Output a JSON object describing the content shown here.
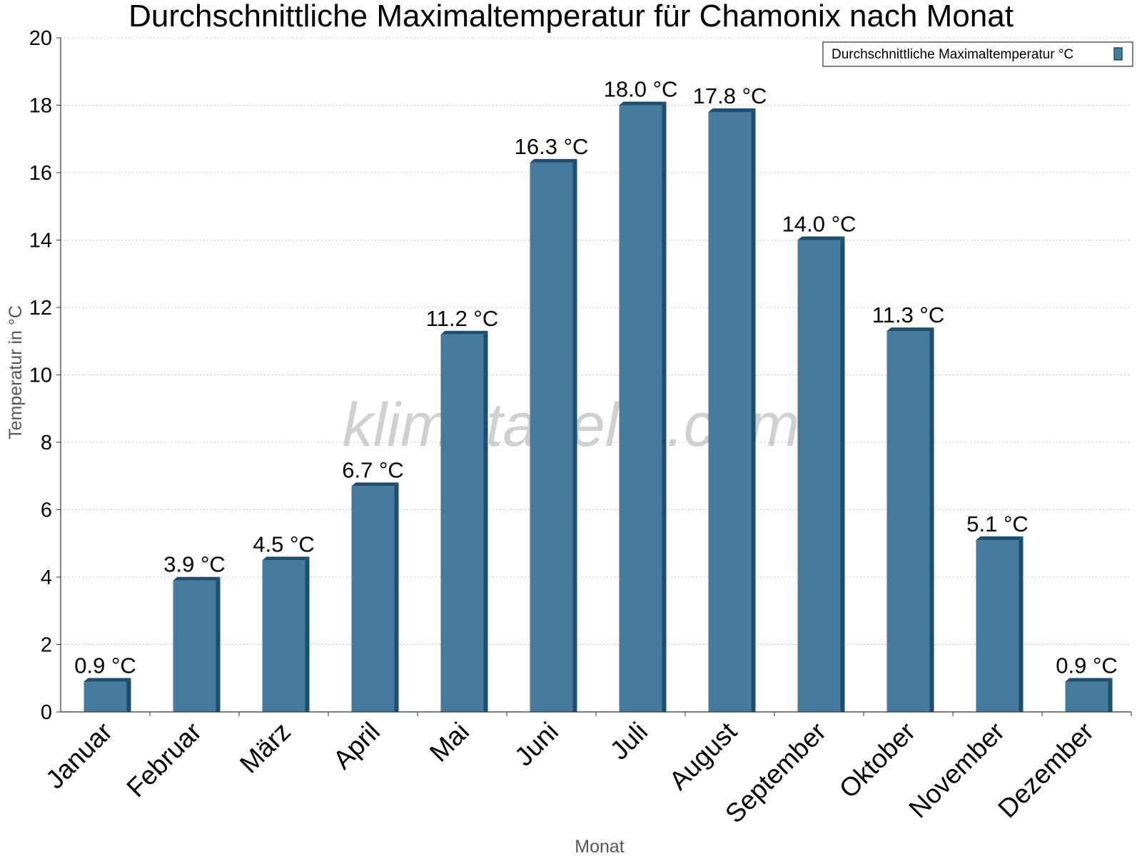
{
  "chart_data": {
    "type": "bar",
    "title": "Durchschnittliche Maximaltemperatur für Chamonix nach Monat",
    "xlabel": "Monat",
    "ylabel": "Temperatur in °C",
    "ylim": [
      0,
      20
    ],
    "yticks": [
      0,
      2,
      4,
      6,
      8,
      10,
      12,
      14,
      16,
      18,
      20
    ],
    "grid": true,
    "legend": {
      "position": "top-right",
      "entries": [
        "Durchschnittliche Maximaltemperatur °C"
      ]
    },
    "categories": [
      "Januar",
      "Februar",
      "März",
      "April",
      "Mai",
      "Juni",
      "Juli",
      "August",
      "September",
      "Oktober",
      "November",
      "Dezember"
    ],
    "series": [
      {
        "name": "Durchschnittliche Maximaltemperatur °C",
        "values": [
          0.9,
          3.9,
          4.5,
          6.7,
          11.2,
          16.3,
          18.0,
          17.8,
          14.0,
          11.3,
          5.1,
          0.9
        ],
        "labels": [
          "0.9 °C",
          "3.9 °C",
          "4.5 °C",
          "6.7 °C",
          "11.2 °C",
          "16.3 °C",
          "18.0 °C",
          "17.8 °C",
          "14.0 °C",
          "11.3 °C",
          "5.1 °C",
          "0.9 °C"
        ]
      }
    ],
    "watermark": "klimatabelle.com"
  },
  "colors": {
    "bar_front": "#457b9d",
    "bar_side": "#1d4e6f",
    "bar_top": "#1d4e6f",
    "grid": "#c8c8c8",
    "axis": "#333333"
  }
}
